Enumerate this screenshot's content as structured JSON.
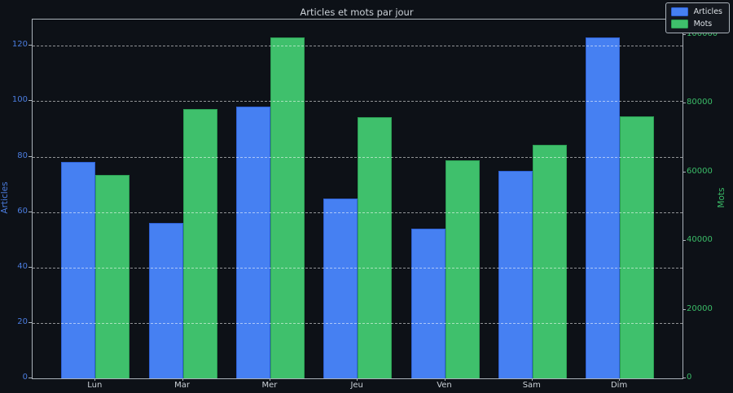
{
  "figure": {
    "background": "#0d1117",
    "text_color": "#ccd2d8",
    "spine_color": "#aab2ba",
    "grid_color": "rgba(255,255,255,0.55)"
  },
  "chart_data": {
    "type": "bar",
    "title": "Articles et mots par jour",
    "categories": [
      "Lun",
      "Mar",
      "Mer",
      "Jeu",
      "Ven",
      "Sam",
      "Dim"
    ],
    "series": [
      {
        "name": "Articles",
        "axis": "left",
        "color": "#4680f2",
        "edge_color": "#2e5fd2",
        "values": [
          78,
          56,
          98,
          65,
          54,
          75,
          123
        ]
      },
      {
        "name": "Mots",
        "axis": "right",
        "color": "#3fc06c",
        "edge_color": "#2b9e53",
        "values": [
          59200,
          78400,
          99300,
          76000,
          63600,
          67900,
          76200
        ]
      }
    ],
    "left_axis": {
      "label": "Articles",
      "color": "#4b7de0",
      "ticks": [
        0,
        20,
        40,
        60,
        80,
        100,
        120
      ],
      "min": 0,
      "max": 129.5
    },
    "right_axis": {
      "label": "Mots",
      "color": "#3bbd68",
      "ticks": [
        0,
        20000,
        40000,
        60000,
        80000,
        100000
      ],
      "min": 0,
      "max": 104500
    },
    "grid": "horizontal-dashed",
    "legend_position": "top-right",
    "bar_width": 0.4
  },
  "legend": {
    "items": [
      {
        "label": "Articles"
      },
      {
        "label": "Mots"
      }
    ]
  }
}
